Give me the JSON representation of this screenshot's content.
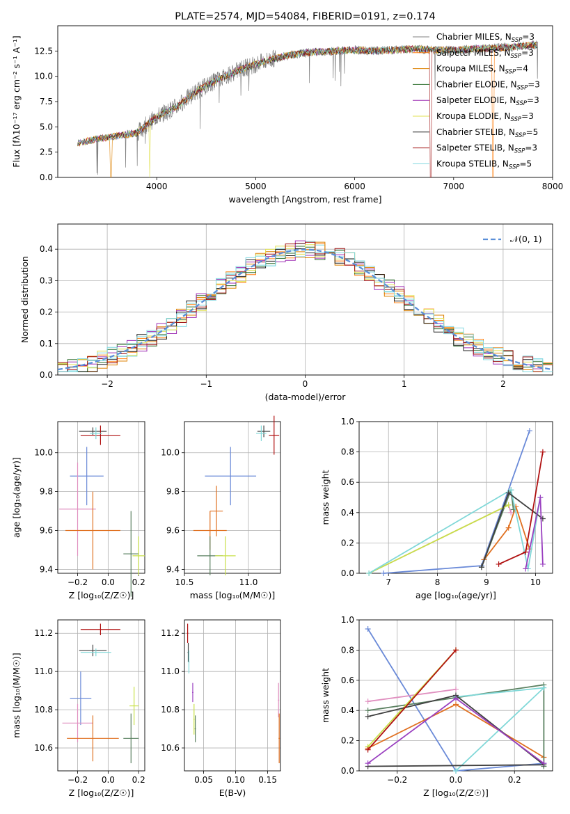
{
  "colors": {
    "axis": "#000000",
    "grid": "#b0b0b0",
    "series": [
      "#808080",
      "#ff7f0e",
      "#dd8000",
      "#2e6f2e",
      "#9e2eb4",
      "#e0e050",
      "#1f1f1f",
      "#a01010",
      "#80d8e0"
    ],
    "param": [
      "#6a8ad8",
      "#e090c0",
      "#e07020",
      "#5a8060",
      "#c8e048",
      "#80d8d8",
      "#404040",
      "#b01010",
      "#9a40c0"
    ]
  },
  "chart_data": [
    {
      "type": "line",
      "title": "PLATE=2574, MJD=54084, FIBERID=0191, z=0.174",
      "xlabel": "wavelength [Angstrom, rest frame]",
      "ylabel": "Flux [f$_\\lambda$10$^{-17}$ erg cm$^{-2}$ s$^{-1}$ A$^{-1}$]",
      "ylabel_display": "Flux [fλ10⁻¹⁷ erg cm⁻² s⁻¹ A⁻¹]",
      "xlim": [
        3000,
        8000
      ],
      "ylim": [
        0,
        15
      ],
      "xticks": [
        "4000",
        "5000",
        "6000",
        "7000",
        "8000"
      ],
      "yticks": [
        "0.0",
        "2.5",
        "5.0",
        "7.5",
        "10.0",
        "12.5"
      ],
      "legend_position": "upper-right",
      "legend": [
        "Chabrier MILES, N_SSP=3",
        "Salpeter MILES, N_SSP=3",
        "Kroupa MILES, N_SSP=4",
        "Chabrier ELODIE, N_SSP=3",
        "Salpeter ELODIE, N_SSP=3",
        "Kroupa ELODIE, N_SSP=3",
        "Chabrier STELIB, N_SSP=5",
        "Salpeter STELIB, N_SSP=3",
        "Kroupa STELIB, N_SSP=5"
      ],
      "legend_display": [
        {
          "main": "Chabrier MILES, N",
          "sub": "SSP",
          "tail": "=3"
        },
        {
          "main": "Salpeter MILES, N",
          "sub": "SSP",
          "tail": "=3"
        },
        {
          "main": "Kroupa MILES, N",
          "sub": "SSP",
          "tail": "=4"
        },
        {
          "main": "Chabrier ELODIE, N",
          "sub": "SSP",
          "tail": "=3"
        },
        {
          "main": "Salpeter ELODIE, N",
          "sub": "SSP",
          "tail": "=3"
        },
        {
          "main": "Kroupa ELODIE, N",
          "sub": "SSP",
          "tail": "=3"
        },
        {
          "main": "Chabrier STELIB, N",
          "sub": "SSP",
          "tail": "=5"
        },
        {
          "main": "Salpeter STELIB, N",
          "sub": "SSP",
          "tail": "=3"
        },
        {
          "main": "Kroupa STELIB, N",
          "sub": "SSP",
          "tail": "=5"
        }
      ],
      "series_anchor": {
        "x": [
          3200,
          3400,
          3600,
          3800,
          4000,
          4200,
          4400,
          4600,
          4800,
          5000,
          5200,
          5400,
          5600,
          5800,
          6000,
          6200,
          6400,
          6600,
          6800,
          7000,
          7200,
          7400,
          7600,
          7800
        ],
        "y": [
          3.4,
          3.8,
          4.1,
          4.4,
          6.0,
          7.0,
          8.5,
          9.6,
          10.5,
          11.2,
          11.8,
          12.2,
          12.4,
          12.5,
          12.6,
          12.5,
          12.6,
          12.7,
          12.6,
          12.6,
          12.7,
          12.8,
          12.9,
          13.1
        ]
      }
    },
    {
      "type": "line",
      "xlabel": "(data-model)/error",
      "ylabel": "Normed distribution",
      "xlim": [
        -2.5,
        2.5
      ],
      "ylim": [
        0,
        0.48
      ],
      "xticks": [
        "−2",
        "−1",
        "0",
        "1",
        "2"
      ],
      "yticks": [
        "0.0",
        "0.1",
        "0.2",
        "0.3",
        "0.4"
      ],
      "legend_position": "upper-right",
      "legend": [
        "𝒩(0, 1)"
      ],
      "gaussian": {
        "mu": 0,
        "sigma": 1
      }
    },
    {
      "type": "scatter",
      "name": "age-vs-Z",
      "xlabel": "Z [log₁₀(Z/Z☉)]",
      "ylabel": "age  [log₁₀(age/yr)]",
      "xlim": [
        -0.33,
        0.24
      ],
      "ylim": [
        9.38,
        10.16
      ],
      "xticks": [
        "−0.2",
        "0.0",
        "0.2"
      ],
      "yticks": [
        "9.4",
        "9.6",
        "9.8",
        "10.0"
      ],
      "points": [
        {
          "x": -0.1,
          "y": 10.11,
          "xerr": 0.09,
          "yerr": 0.02,
          "c": 6
        },
        {
          "x": -0.05,
          "y": 10.09,
          "xerr": 0.13,
          "yerr": 0.05,
          "c": 7
        },
        {
          "x": -0.08,
          "y": 10.1,
          "xerr": 0.04,
          "yerr": 0.03,
          "c": 5
        },
        {
          "x": -0.14,
          "y": 9.88,
          "xerr": 0.11,
          "yerr": 0.15,
          "c": 0
        },
        {
          "x": -0.2,
          "y": 9.71,
          "xerr": 0.12,
          "yerr": 0.24,
          "c": 1
        },
        {
          "x": -0.1,
          "y": 9.6,
          "xerr": 0.18,
          "yerr": 0.2,
          "c": 2
        },
        {
          "x": 0.15,
          "y": 9.48,
          "xerr": 0.05,
          "yerr": 0.22,
          "c": 3
        },
        {
          "x": 0.2,
          "y": 9.47,
          "xerr": 0.04,
          "yerr": 0.1,
          "c": 4
        }
      ]
    },
    {
      "type": "scatter",
      "name": "age-vs-mass",
      "xlabel": "mass [log₁₀(M/M☉)]",
      "ylabel": "",
      "xlim": [
        10.5,
        11.25
      ],
      "ylim": [
        9.38,
        10.16
      ],
      "xticks": [
        "10.5",
        "11.0"
      ],
      "yticks": [
        "9.4",
        "9.6",
        "9.8",
        "10.0"
      ],
      "points": [
        {
          "x": 11.12,
          "y": 10.11,
          "xerr": 0.05,
          "yerr": 0.03,
          "c": 6
        },
        {
          "x": 11.2,
          "y": 10.09,
          "xerr": 0.04,
          "yerr": 0.1,
          "c": 7
        },
        {
          "x": 11.1,
          "y": 10.1,
          "xerr": 0.04,
          "yerr": 0.04,
          "c": 5
        },
        {
          "x": 10.86,
          "y": 9.88,
          "xerr": 0.2,
          "yerr": 0.15,
          "c": 0
        },
        {
          "x": 10.75,
          "y": 9.7,
          "xerr": 0.05,
          "yerr": 0.13,
          "c": 2
        },
        {
          "x": 10.7,
          "y": 9.6,
          "xerr": 0.13,
          "yerr": 0.1,
          "c": 2
        },
        {
          "x": 10.7,
          "y": 9.47,
          "xerr": 0.1,
          "yerr": 0.1,
          "c": 3
        },
        {
          "x": 10.82,
          "y": 9.47,
          "xerr": 0.08,
          "yerr": 0.1,
          "c": 4
        }
      ]
    },
    {
      "type": "line",
      "name": "mass-weight-vs-age",
      "xlabel": "age  [log₁₀(age/yr)]",
      "ylabel": "mass weight",
      "xlim": [
        6.4,
        10.35
      ],
      "ylim": [
        0,
        1
      ],
      "xticks": [
        "7",
        "8",
        "9",
        "10"
      ],
      "yticks": [
        "0.0",
        "0.2",
        "0.4",
        "0.6",
        "0.8",
        "1.0"
      ],
      "series": [
        {
          "c": 0,
          "x": [
            6.9,
            8.9,
            9.88
          ],
          "y": [
            0.0,
            0.05,
            0.94
          ]
        },
        {
          "c": 1,
          "x": [
            6.6,
            9.45,
            9.5
          ],
          "y": [
            0.0,
            0.45,
            0.4
          ]
        },
        {
          "c": 2,
          "x": [
            8.95,
            9.45,
            9.6,
            9.88
          ],
          "y": [
            0.09,
            0.3,
            0.44,
            0.16
          ]
        },
        {
          "c": 3,
          "x": [
            8.9,
            9.5,
            9.55
          ],
          "y": [
            0.04,
            0.55,
            0.42
          ]
        },
        {
          "c": 4,
          "x": [
            6.6,
            9.45
          ],
          "y": [
            0.0,
            0.45
          ]
        },
        {
          "c": 5,
          "x": [
            6.6,
            9.5,
            9.85,
            10.1
          ],
          "y": [
            0.0,
            0.55,
            0.03,
            0.5
          ]
        },
        {
          "c": 6,
          "x": [
            8.9,
            9.45,
            10.15
          ],
          "y": [
            0.04,
            0.53,
            0.36
          ]
        },
        {
          "c": 7,
          "x": [
            9.25,
            9.8,
            10.15
          ],
          "y": [
            0.06,
            0.14,
            0.8
          ]
        },
        {
          "c": 8,
          "x": [
            9.8,
            10.1,
            10.15
          ],
          "y": [
            0.03,
            0.5,
            0.06
          ]
        }
      ]
    },
    {
      "type": "scatter",
      "name": "mass-vs-Z",
      "xlabel": "Z [log₁₀(Z/Z☉)]",
      "ylabel": "mass [log₁₀(M/M☉)]",
      "xlim": [
        -0.33,
        0.24
      ],
      "ylim": [
        10.48,
        11.27
      ],
      "xticks": [
        "−0.2",
        "0.0",
        "0.2"
      ],
      "yticks": [
        "10.6",
        "10.8",
        "11.0",
        "11.2"
      ],
      "points": [
        {
          "x": -0.05,
          "y": 11.22,
          "xerr": 0.13,
          "yerr": 0.03,
          "c": 7
        },
        {
          "x": -0.1,
          "y": 11.11,
          "xerr": 0.09,
          "yerr": 0.03,
          "c": 6
        },
        {
          "x": -0.08,
          "y": 11.1,
          "xerr": 0.1,
          "yerr": 0.02,
          "c": 5
        },
        {
          "x": -0.18,
          "y": 10.86,
          "xerr": 0.07,
          "yerr": 0.14,
          "c": 0
        },
        {
          "x": -0.2,
          "y": 10.73,
          "xerr": 0.1,
          "yerr": 0.1,
          "c": 1
        },
        {
          "x": -0.1,
          "y": 10.65,
          "xerr": 0.17,
          "yerr": 0.12,
          "c": 2
        },
        {
          "x": 0.15,
          "y": 10.65,
          "xerr": 0.05,
          "yerr": 0.13,
          "c": 3
        },
        {
          "x": 0.17,
          "y": 10.82,
          "xerr": 0.03,
          "yerr": 0.1,
          "c": 4
        }
      ]
    },
    {
      "type": "scatter",
      "name": "mass-vs-EBV",
      "xlabel": "E(B-V)",
      "ylabel": "",
      "xlim": [
        0.02,
        0.17
      ],
      "ylim": [
        10.48,
        11.27
      ],
      "xticks": [
        "0.05",
        "0.10",
        "0.15"
      ],
      "yticks": [
        "10.6",
        "10.8",
        "11.0",
        "11.2"
      ],
      "points": [
        {
          "x": 0.025,
          "y": 11.2,
          "xerr": 0.001,
          "yerr": 0.05,
          "c": 7
        },
        {
          "x": 0.026,
          "y": 11.1,
          "xerr": 0.001,
          "yerr": 0.05,
          "c": 6
        },
        {
          "x": 0.027,
          "y": 11.05,
          "xerr": 0.001,
          "yerr": 0.06,
          "c": 5
        },
        {
          "x": 0.033,
          "y": 10.89,
          "xerr": 0.001,
          "yerr": 0.05,
          "c": 8
        },
        {
          "x": 0.035,
          "y": 10.75,
          "xerr": 0.001,
          "yerr": 0.08,
          "c": 4
        },
        {
          "x": 0.037,
          "y": 10.7,
          "xerr": 0.001,
          "yerr": 0.07,
          "c": 3
        },
        {
          "x": 0.167,
          "y": 10.85,
          "xerr": 0.001,
          "yerr": 0.09,
          "c": 1
        },
        {
          "x": 0.168,
          "y": 10.65,
          "xerr": 0.001,
          "yerr": 0.13,
          "c": 2
        }
      ]
    },
    {
      "type": "line",
      "name": "mass-weight-vs-Z",
      "xlabel": "Z [log₁₀(Z/Z☉)]",
      "ylabel": "mass weight",
      "xlim": [
        -0.33,
        0.33
      ],
      "ylim": [
        0,
        1
      ],
      "xticks": [
        "−0.2",
        "0.0",
        "0.2"
      ],
      "yticks": [
        "0.0",
        "0.2",
        "0.4",
        "0.6",
        "0.8",
        "1.0"
      ],
      "series": [
        {
          "c": 0,
          "x": [
            -0.3,
            0.0,
            0.3
          ],
          "y": [
            0.94,
            0.0,
            0.05
          ]
        },
        {
          "c": 1,
          "x": [
            -0.3,
            0.0
          ],
          "y": [
            0.46,
            0.54
          ]
        },
        {
          "c": 2,
          "x": [
            -0.3,
            0.0,
            0.3
          ],
          "y": [
            0.15,
            0.44,
            0.09
          ]
        },
        {
          "c": 3,
          "x": [
            -0.3,
            0.3,
            0.3
          ],
          "y": [
            0.4,
            0.57,
            0.03
          ]
        },
        {
          "c": 4,
          "x": [
            -0.3,
            0.0
          ],
          "y": [
            0.16,
            0.8
          ]
        },
        {
          "c": 5,
          "x": [
            0.0,
            0.3,
            0.0
          ],
          "y": [
            0.0,
            0.55,
            0.49
          ]
        },
        {
          "c": 6,
          "x": [
            -0.3,
            0.0,
            0.3,
            -0.3
          ],
          "y": [
            0.36,
            0.5,
            0.04,
            0.03
          ]
        },
        {
          "c": 7,
          "x": [
            -0.3,
            0.0
          ],
          "y": [
            0.14,
            0.8
          ]
        },
        {
          "c": 8,
          "x": [
            -0.3,
            0.0,
            0.3
          ],
          "y": [
            0.05,
            0.48,
            0.05
          ]
        }
      ]
    }
  ]
}
